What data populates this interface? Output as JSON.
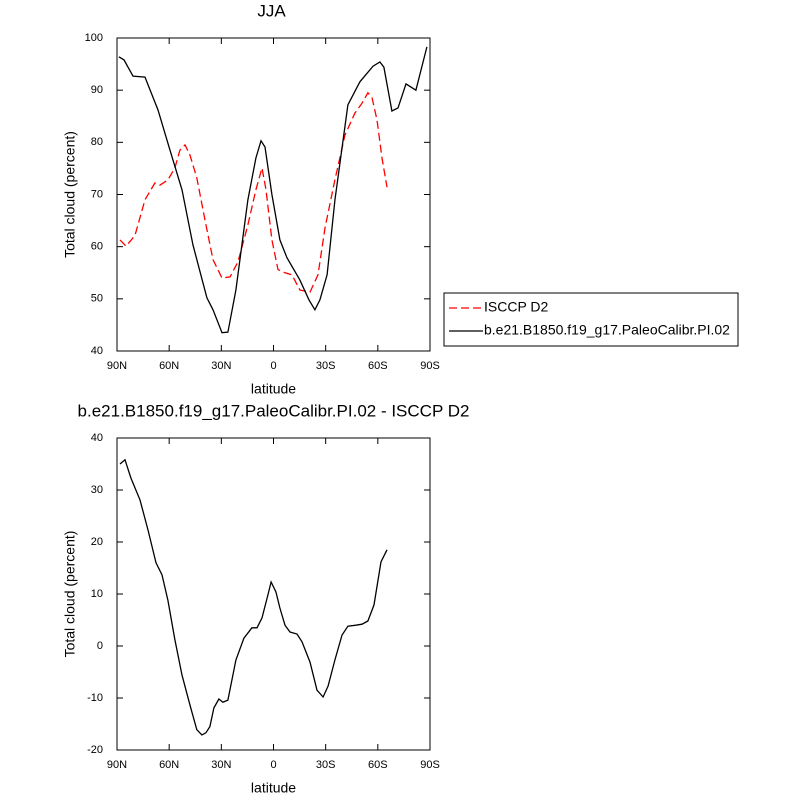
{
  "chart_data": [
    {
      "type": "line",
      "title": "JJA",
      "xlabel": "latitude",
      "ylabel": "Total cloud (percent)",
      "xlim": [
        90,
        -90
      ],
      "ylim": [
        40,
        100
      ],
      "xticks": [
        {
          "value": 90,
          "label": "90N"
        },
        {
          "value": 60,
          "label": "60N"
        },
        {
          "value": 30,
          "label": "30N"
        },
        0,
        {
          "value": -30,
          "label": "30S"
        },
        {
          "value": -60,
          "label": "60S"
        },
        {
          "value": -90,
          "label": "90S"
        }
      ],
      "yticks": [
        40,
        50,
        60,
        70,
        80,
        90,
        100
      ],
      "series": [
        {
          "name": "ISCCP D2",
          "color": "#ff0000",
          "line_style": "dashed",
          "x": [
            88.3,
            84.8,
            79.7,
            73.9,
            68.2,
            65.3,
            60.7,
            56.7,
            53.8,
            50.9,
            48.1,
            44.1,
            39.4,
            34.8,
            29.6,
            25.0,
            20.4,
            14.7,
            10.1,
            6.6,
            4.3,
            0.9,
            -2.6,
            -6.6,
            -10.6,
            -15.2,
            -21.0,
            -25.6,
            -29.6,
            -35.3,
            -41.1,
            -46.8,
            -50.9,
            -54.3,
            -56.7,
            -59.5,
            -62.4,
            -65.3
          ],
          "values": [
            61.3,
            60.1,
            62.1,
            69,
            72.2,
            71.8,
            72.8,
            75.1,
            78.5,
            79.5,
            77.6,
            73.2,
            65.1,
            57.5,
            54,
            54.2,
            57.1,
            64.2,
            70.9,
            75.1,
            70.9,
            61.3,
            55.6,
            55,
            54.6,
            51.7,
            51.3,
            54.6,
            63.6,
            72.8,
            81.4,
            85.6,
            87.5,
            89.5,
            88.5,
            84.3,
            77,
            71.4
          ]
        },
        {
          "name": "b.e21.B1850.f19_g17.PaleoCalibr.PI.02",
          "color": "#000000",
          "line_style": "solid",
          "x": [
            88.9,
            86,
            80.8,
            73.9,
            66.4,
            59.5,
            52.6,
            46.3,
            38.3,
            34.8,
            29.6,
            26.2,
            21.6,
            14.7,
            10.1,
            7.2,
            4.9,
            0.9,
            -3.7,
            -7.7,
            -15.2,
            -20.4,
            -23.8,
            -26.7,
            -30.8,
            -35.3,
            -42.8,
            -49.7,
            -57.2,
            -61.2,
            -63.5,
            -68.1,
            -71.6,
            -76.2,
            -81.9,
            -88.2
          ],
          "values": [
            96.4,
            95.8,
            92.7,
            92.5,
            86.2,
            78.5,
            70.9,
            60.3,
            50.2,
            47.9,
            43.5,
            43.6,
            51.7,
            69,
            77,
            80.3,
            79.1,
            70,
            61.3,
            57.9,
            53.6,
            49.8,
            47.9,
            49.8,
            54.6,
            68.9,
            87.2,
            91.6,
            94.6,
            95.4,
            94.4,
            86,
            86.6,
            91.2,
            90,
            98.3
          ]
        }
      ]
    },
    {
      "type": "line",
      "title": "b.e21.B1850.f19_g17.PaleoCalibr.PI.02 - ISCCP D2",
      "xlabel": "latitude",
      "ylabel": "Total cloud (percent)",
      "xlim": [
        90,
        -90
      ],
      "ylim": [
        -20,
        40
      ],
      "xticks": [
        {
          "value": 90,
          "label": "90N"
        },
        {
          "value": 60,
          "label": "60N"
        },
        {
          "value": 30,
          "label": "30N"
        },
        0,
        {
          "value": -30,
          "label": "30S"
        },
        {
          "value": -60,
          "label": "60S"
        },
        {
          "value": -90,
          "label": "90S"
        }
      ],
      "yticks": [
        -20,
        -10,
        0,
        10,
        20,
        30,
        40
      ],
      "series": [
        {
          "color": "#000000",
          "line_style": "solid",
          "x": [
            88.3,
            85.4,
            82.0,
            76.8,
            72.2,
            67.6,
            64.1,
            60.7,
            56.7,
            52.6,
            48.1,
            44.1,
            41.2,
            38.9,
            36.6,
            34.3,
            31.4,
            29.1,
            26.2,
            21.6,
            17.0,
            12.4,
            9.5,
            6.6,
            3.2,
            1.4,
            -1.4,
            -3.7,
            -6.6,
            -9.5,
            -13.5,
            -16.4,
            -21.0,
            -25.0,
            -28.5,
            -31.4,
            -35.3,
            -39.4,
            -42.8,
            -47.4,
            -50.9,
            -54.3,
            -57.8,
            -61.8,
            -65.3
          ],
          "values": [
            35,
            35.8,
            32.3,
            28.1,
            22.3,
            16,
            13.7,
            8.8,
            1.2,
            -5.6,
            -11.3,
            -16.1,
            -17.1,
            -16.7,
            -15.5,
            -11.9,
            -10.2,
            -10.8,
            -10.4,
            -2.7,
            1.5,
            3.5,
            3.5,
            5.4,
            9.8,
            12.3,
            10.4,
            7.3,
            4.0,
            2.7,
            2.3,
            0.8,
            -3.1,
            -8.5,
            -9.8,
            -7.7,
            -2.7,
            2.1,
            3.8,
            4.0,
            4.2,
            4.8,
            7.9,
            16.2,
            18.5
          ]
        }
      ]
    }
  ]
}
